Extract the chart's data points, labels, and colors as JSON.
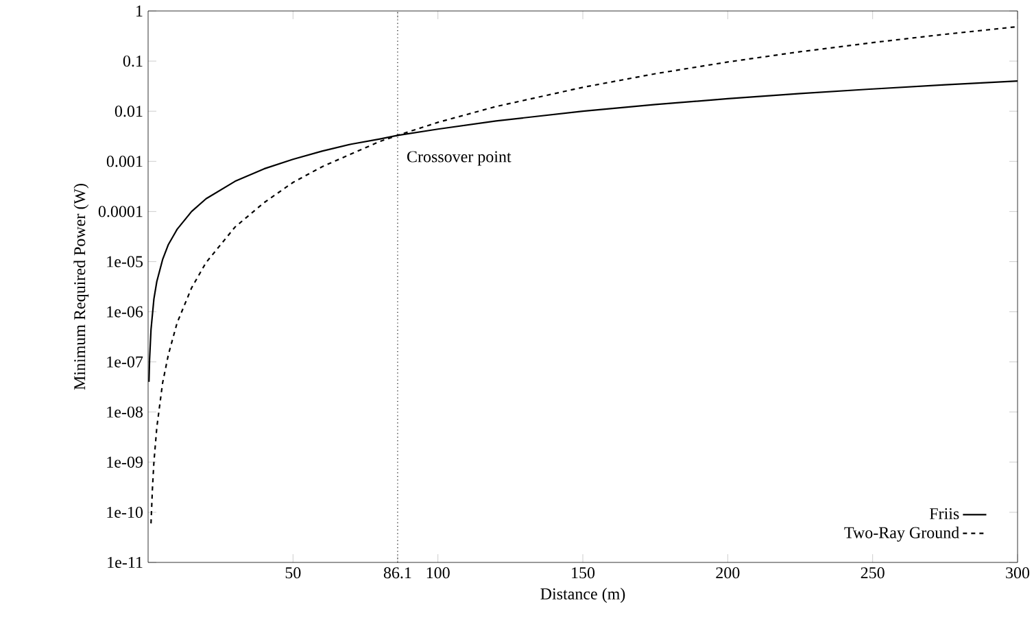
{
  "chart_data": {
    "type": "line",
    "xlabel": "Distance (m)",
    "ylabel": "Minimum Required Power (W)",
    "log": "y",
    "grid": false,
    "legend": "bottom right",
    "marker": "none",
    "xlim": [
      0,
      300
    ],
    "ylim": [
      1e-11,
      1
    ],
    "xticks": [
      50,
      86.1,
      100,
      150,
      200,
      250,
      300
    ],
    "yticks": [
      {
        "value": 1e-11,
        "label": "1e-11"
      },
      {
        "value": 1e-10,
        "label": "1e-10"
      },
      {
        "value": 1e-09,
        "label": "1e-09"
      },
      {
        "value": 1e-08,
        "label": "1e-08"
      },
      {
        "value": 1e-07,
        "label": "1e-07"
      },
      {
        "value": 1e-06,
        "label": "1e-06"
      },
      {
        "value": 1e-05,
        "label": "1e-05"
      },
      {
        "value": 0.0001,
        "label": "0.0001"
      },
      {
        "value": 0.001,
        "label": "0.001"
      },
      {
        "value": 0.01,
        "label": "0.01"
      },
      {
        "value": 0.1,
        "label": "0.1"
      },
      {
        "value": 1,
        "label": "1"
      }
    ],
    "ref_lines": [
      {
        "axis": "x",
        "value": 86.1,
        "line_style": "dotted",
        "color": "#000000"
      }
    ],
    "annotations": [
      {
        "text": "Crossover point",
        "x": 86.1,
        "y": 0.0033
      }
    ],
    "series": [
      {
        "name": "Friis",
        "color": "#000000",
        "line_style": "solid",
        "x": [
          0.3,
          0.5,
          1,
          2,
          3,
          5,
          7,
          10,
          15,
          20,
          30,
          40,
          50,
          60,
          70,
          80,
          86.1,
          100,
          120,
          150,
          175,
          200,
          225,
          250,
          275,
          300
        ],
        "values": [
          4e-08,
          1.1e-07,
          4.4e-07,
          1.8e-06,
          4e-06,
          1.1e-05,
          2.2e-05,
          4.4e-05,
          0.0001,
          0.00018,
          0.0004,
          0.00071,
          0.0011,
          0.0016,
          0.0022,
          0.0028,
          0.0033,
          0.0044,
          0.0064,
          0.01,
          0.0136,
          0.0178,
          0.0225,
          0.0278,
          0.0336,
          0.04
        ]
      },
      {
        "name": "Two-Ray Ground",
        "color": "#000000",
        "line_style": "dashed",
        "x": [
          1,
          1.5,
          2,
          3,
          5,
          7,
          10,
          15,
          20,
          30,
          40,
          50,
          60,
          70,
          80,
          86.1,
          100,
          120,
          150,
          175,
          200,
          225,
          250,
          275,
          300
        ],
        "values": [
          6e-11,
          3e-10,
          1e-09,
          4.9e-09,
          3.8e-08,
          1.4e-07,
          6e-07,
          3e-06,
          9.6e-06,
          4.9e-05,
          0.00015,
          0.00038,
          0.00078,
          0.0014,
          0.0025,
          0.0033,
          0.006,
          0.0124,
          0.03,
          0.056,
          0.096,
          0.154,
          0.234,
          0.343,
          0.486
        ]
      }
    ]
  }
}
